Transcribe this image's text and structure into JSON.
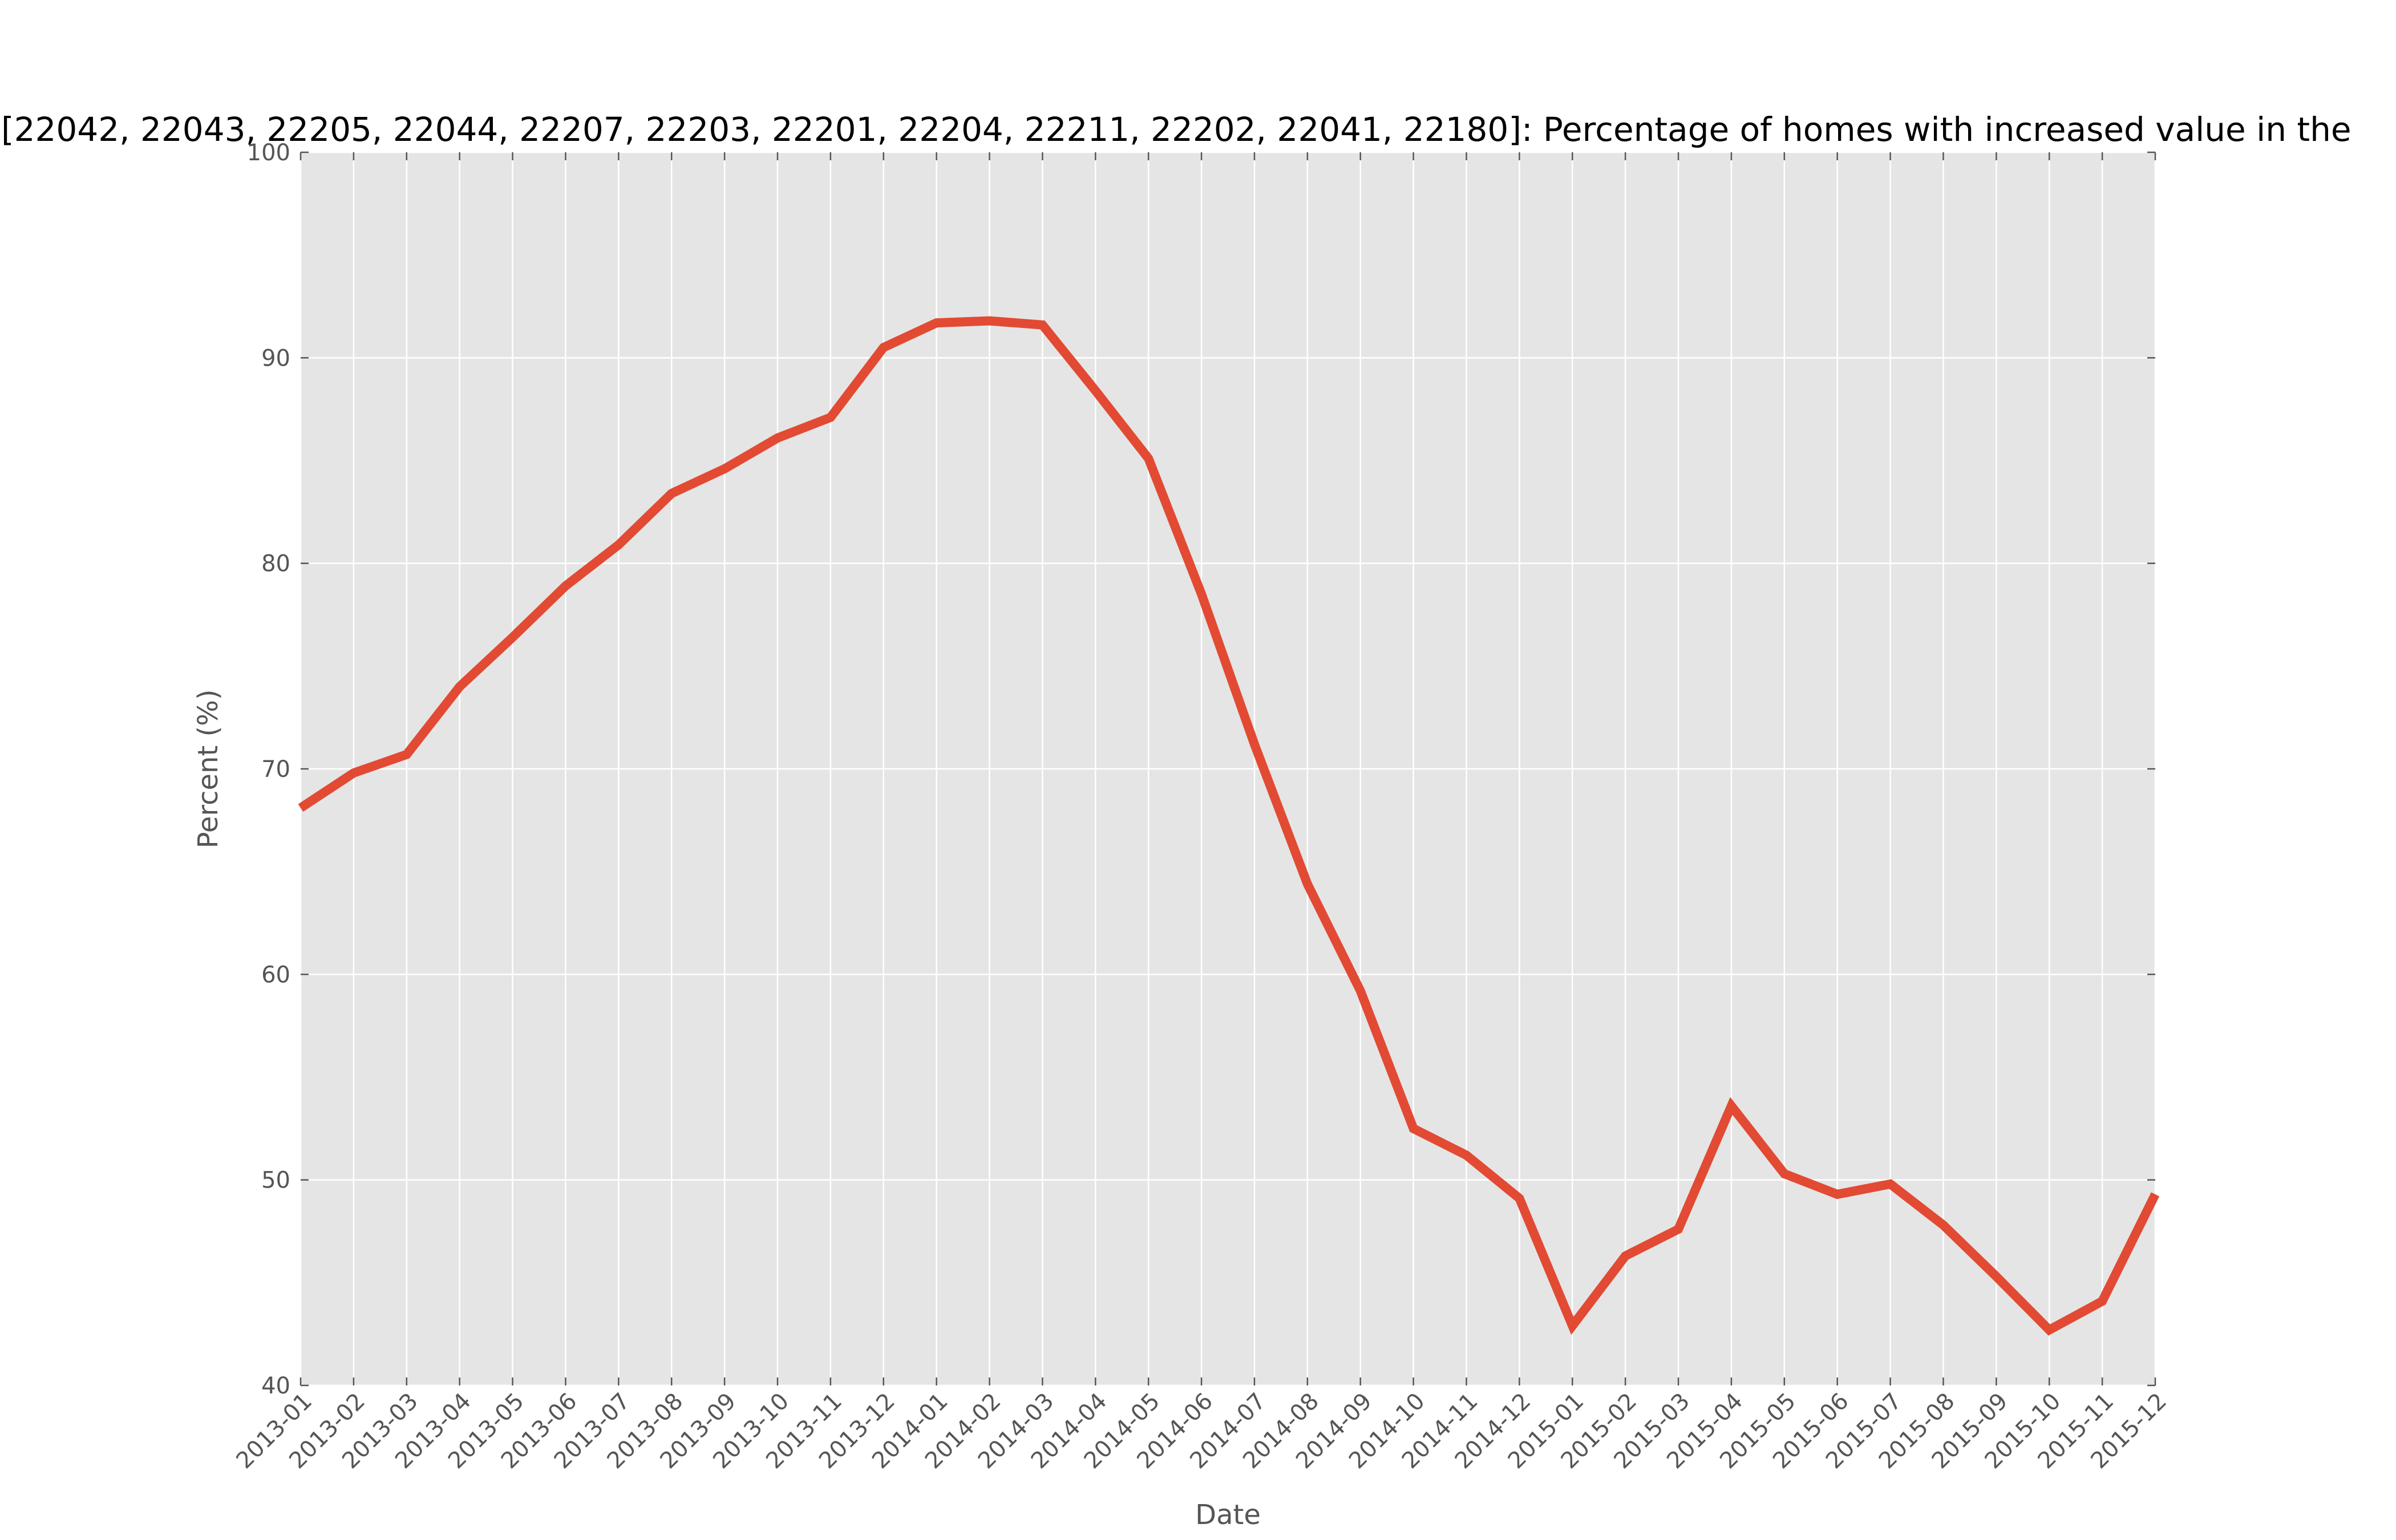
{
  "chart_data": {
    "type": "line",
    "title": "[22042, 22043, 22205, 22044, 22207, 22203, 22201, 22204, 22211, 22202, 22041, 22180]: Percentage of homes with increased value in the",
    "xlabel": "Date",
    "ylabel": "Percent (%)",
    "ylim": [
      40,
      100
    ],
    "yticks": [
      40,
      50,
      60,
      70,
      80,
      90,
      100
    ],
    "grid": true,
    "x": [
      "2013-01",
      "2013-02",
      "2013-03",
      "2013-04",
      "2013-05",
      "2013-06",
      "2013-07",
      "2013-08",
      "2013-09",
      "2013-10",
      "2013-11",
      "2013-12",
      "2014-01",
      "2014-02",
      "2014-03",
      "2014-04",
      "2014-05",
      "2014-06",
      "2014-07",
      "2014-08",
      "2014-09",
      "2014-10",
      "2014-11",
      "2014-12",
      "2015-01",
      "2015-02",
      "2015-03",
      "2015-04",
      "2015-05",
      "2015-06",
      "2015-07",
      "2015-08",
      "2015-09",
      "2015-10",
      "2015-11",
      "2015-12"
    ],
    "series": [
      {
        "values": [
          68.1,
          69.8,
          70.7,
          74.0,
          76.4,
          78.9,
          80.9,
          83.4,
          84.6,
          86.1,
          87.1,
          90.5,
          91.7,
          91.8,
          91.6,
          88.4,
          85.1,
          78.5,
          71.2,
          64.4,
          59.2,
          52.5,
          51.2,
          49.1,
          42.9,
          46.3,
          47.6,
          53.6,
          50.3,
          49.3,
          49.8,
          47.8,
          45.3,
          42.7,
          44.1,
          49.3
        ],
        "color": "#e24a33"
      }
    ],
    "colors": {
      "plot_background": "#e5e5e5",
      "grid": "#ffffff",
      "tick_text": "#555555",
      "title_text": "#000000"
    }
  }
}
